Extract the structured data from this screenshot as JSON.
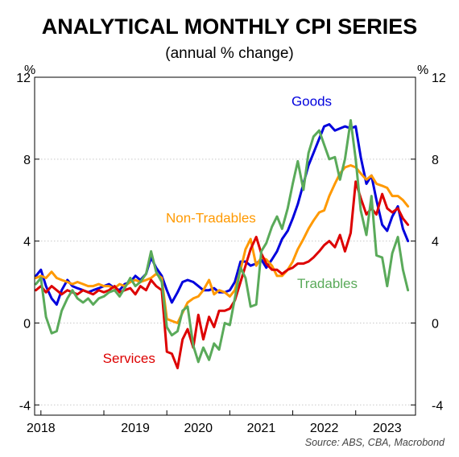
{
  "chart_data": {
    "type": "line",
    "title": "ANALYTICAL MONTHLY CPI SERIES",
    "subtitle": "(annual % change)",
    "y_unit_left": "%",
    "y_unit_right": "%",
    "ylim": [
      -4.5,
      12
    ],
    "y_ticks": [
      12,
      8,
      4,
      0,
      -4
    ],
    "y_tick_labels": [
      "12",
      "8",
      "4",
      "0",
      "-4"
    ],
    "x_range": [
      2017.9,
      2023.95
    ],
    "x_ticks": [
      2018,
      2019,
      2020,
      2021,
      2022,
      2023
    ],
    "x_tick_labels": [
      "2018",
      "2019",
      "2020",
      "2021",
      "2022",
      "2023"
    ],
    "grid": "horizontal",
    "source": "Source: ABS, CBA, Macrobond",
    "series": [
      {
        "name": "Goods",
        "color": "#0000dd",
        "points": [
          [
            2017.92,
            2.3
          ],
          [
            2018.0,
            2.6
          ],
          [
            2018.08,
            1.8
          ],
          [
            2018.17,
            1.2
          ],
          [
            2018.25,
            0.9
          ],
          [
            2018.33,
            1.6
          ],
          [
            2018.42,
            2.1
          ],
          [
            2018.5,
            1.8
          ],
          [
            2018.58,
            1.7
          ],
          [
            2018.67,
            1.6
          ],
          [
            2018.75,
            1.5
          ],
          [
            2018.83,
            1.6
          ],
          [
            2018.92,
            1.7
          ],
          [
            2019.0,
            1.8
          ],
          [
            2019.08,
            1.9
          ],
          [
            2019.17,
            1.7
          ],
          [
            2019.25,
            1.6
          ],
          [
            2019.33,
            1.9
          ],
          [
            2019.42,
            2.0
          ],
          [
            2019.5,
            2.3
          ],
          [
            2019.58,
            2.1
          ],
          [
            2019.67,
            2.4
          ],
          [
            2019.75,
            3.2
          ],
          [
            2019.83,
            2.7
          ],
          [
            2019.92,
            2.3
          ],
          [
            2020.0,
            1.6
          ],
          [
            2020.08,
            1.0
          ],
          [
            2020.17,
            1.5
          ],
          [
            2020.25,
            2.0
          ],
          [
            2020.33,
            2.1
          ],
          [
            2020.42,
            2.0
          ],
          [
            2020.5,
            1.8
          ],
          [
            2020.58,
            1.6
          ],
          [
            2020.67,
            1.6
          ],
          [
            2020.75,
            1.7
          ],
          [
            2020.83,
            1.5
          ],
          [
            2020.92,
            1.5
          ],
          [
            2021.0,
            1.6
          ],
          [
            2021.08,
            2.0
          ],
          [
            2021.17,
            3.0
          ],
          [
            2021.25,
            3.0
          ],
          [
            2021.33,
            2.8
          ],
          [
            2021.42,
            2.9
          ],
          [
            2021.5,
            3.1
          ],
          [
            2021.58,
            2.7
          ],
          [
            2021.67,
            3.1
          ],
          [
            2021.75,
            3.5
          ],
          [
            2021.83,
            4.1
          ],
          [
            2021.92,
            4.5
          ],
          [
            2022.0,
            5.1
          ],
          [
            2022.08,
            5.8
          ],
          [
            2022.17,
            6.8
          ],
          [
            2022.25,
            7.7
          ],
          [
            2022.33,
            8.3
          ],
          [
            2022.42,
            9.0
          ],
          [
            2022.5,
            9.6
          ],
          [
            2022.58,
            9.7
          ],
          [
            2022.67,
            9.4
          ],
          [
            2022.75,
            9.5
          ],
          [
            2022.83,
            9.6
          ],
          [
            2022.92,
            9.5
          ],
          [
            2023.0,
            9.6
          ],
          [
            2023.08,
            8.1
          ],
          [
            2023.17,
            6.8
          ],
          [
            2023.25,
            7.2
          ],
          [
            2023.33,
            6.0
          ],
          [
            2023.42,
            4.8
          ],
          [
            2023.5,
            4.5
          ],
          [
            2023.58,
            5.2
          ],
          [
            2023.67,
            5.7
          ],
          [
            2023.75,
            4.6
          ],
          [
            2023.83,
            4.0
          ]
        ]
      },
      {
        "name": "Non-Tradables",
        "color": "#ff9900",
        "points": [
          [
            2017.92,
            2.2
          ],
          [
            2018.0,
            2.3
          ],
          [
            2018.08,
            2.2
          ],
          [
            2018.17,
            2.5
          ],
          [
            2018.25,
            2.2
          ],
          [
            2018.33,
            2.1
          ],
          [
            2018.42,
            2.0
          ],
          [
            2018.5,
            1.9
          ],
          [
            2018.58,
            2.0
          ],
          [
            2018.67,
            1.9
          ],
          [
            2018.75,
            1.8
          ],
          [
            2018.83,
            1.8
          ],
          [
            2018.92,
            1.9
          ],
          [
            2019.0,
            1.8
          ],
          [
            2019.08,
            1.8
          ],
          [
            2019.17,
            1.7
          ],
          [
            2019.25,
            1.9
          ],
          [
            2019.33,
            1.8
          ],
          [
            2019.42,
            2.0
          ],
          [
            2019.5,
            2.1
          ],
          [
            2019.58,
            2.0
          ],
          [
            2019.67,
            2.1
          ],
          [
            2019.75,
            2.2
          ],
          [
            2019.83,
            2.4
          ],
          [
            2019.92,
            2.2
          ],
          [
            2020.0,
            0.2
          ],
          [
            2020.08,
            0.1
          ],
          [
            2020.17,
            0.0
          ],
          [
            2020.25,
            0.5
          ],
          [
            2020.33,
            1.0
          ],
          [
            2020.42,
            1.2
          ],
          [
            2020.5,
            1.3
          ],
          [
            2020.58,
            1.6
          ],
          [
            2020.67,
            2.1
          ],
          [
            2020.75,
            1.4
          ],
          [
            2020.83,
            1.6
          ],
          [
            2020.92,
            1.5
          ],
          [
            2021.0,
            1.3
          ],
          [
            2021.08,
            1.6
          ],
          [
            2021.17,
            2.6
          ],
          [
            2021.25,
            3.6
          ],
          [
            2021.33,
            4.1
          ],
          [
            2021.42,
            2.8
          ],
          [
            2021.5,
            3.2
          ],
          [
            2021.58,
            3.1
          ],
          [
            2021.67,
            2.8
          ],
          [
            2021.75,
            2.3
          ],
          [
            2021.83,
            2.3
          ],
          [
            2021.92,
            2.6
          ],
          [
            2022.0,
            3.0
          ],
          [
            2022.08,
            3.6
          ],
          [
            2022.17,
            4.1
          ],
          [
            2022.25,
            4.6
          ],
          [
            2022.33,
            5.0
          ],
          [
            2022.42,
            5.4
          ],
          [
            2022.5,
            5.5
          ],
          [
            2022.58,
            6.2
          ],
          [
            2022.67,
            6.8
          ],
          [
            2022.75,
            7.3
          ],
          [
            2022.83,
            7.6
          ],
          [
            2022.92,
            7.7
          ],
          [
            2023.0,
            7.6
          ],
          [
            2023.08,
            7.3
          ],
          [
            2023.17,
            7.0
          ],
          [
            2023.25,
            7.2
          ],
          [
            2023.33,
            6.8
          ],
          [
            2023.42,
            6.7
          ],
          [
            2023.5,
            6.6
          ],
          [
            2023.58,
            6.2
          ],
          [
            2023.67,
            6.2
          ],
          [
            2023.75,
            6.0
          ],
          [
            2023.83,
            5.7
          ]
        ]
      },
      {
        "name": "Services",
        "color": "#dd0000",
        "points": [
          [
            2017.92,
            1.6
          ],
          [
            2018.0,
            1.8
          ],
          [
            2018.08,
            1.5
          ],
          [
            2018.17,
            1.8
          ],
          [
            2018.25,
            1.6
          ],
          [
            2018.33,
            1.4
          ],
          [
            2018.42,
            1.6
          ],
          [
            2018.5,
            1.5
          ],
          [
            2018.58,
            1.4
          ],
          [
            2018.67,
            1.6
          ],
          [
            2018.75,
            1.5
          ],
          [
            2018.83,
            1.4
          ],
          [
            2018.92,
            1.6
          ],
          [
            2019.0,
            1.5
          ],
          [
            2019.08,
            1.6
          ],
          [
            2019.17,
            1.8
          ],
          [
            2019.25,
            1.5
          ],
          [
            2019.33,
            1.6
          ],
          [
            2019.42,
            1.7
          ],
          [
            2019.5,
            1.4
          ],
          [
            2019.58,
            1.8
          ],
          [
            2019.67,
            1.6
          ],
          [
            2019.75,
            2.1
          ],
          [
            2019.83,
            1.8
          ],
          [
            2019.92,
            1.6
          ],
          [
            2020.0,
            -1.4
          ],
          [
            2020.08,
            -1.5
          ],
          [
            2020.17,
            -2.2
          ],
          [
            2020.25,
            -0.8
          ],
          [
            2020.33,
            -0.3
          ],
          [
            2020.42,
            -1.2
          ],
          [
            2020.5,
            0.4
          ],
          [
            2020.58,
            -0.8
          ],
          [
            2020.67,
            0.3
          ],
          [
            2020.75,
            -0.2
          ],
          [
            2020.83,
            0.6
          ],
          [
            2020.92,
            0.6
          ],
          [
            2021.0,
            0.7
          ],
          [
            2021.08,
            1.1
          ],
          [
            2021.17,
            2.0
          ],
          [
            2021.25,
            2.8
          ],
          [
            2021.33,
            3.6
          ],
          [
            2021.42,
            4.2
          ],
          [
            2021.5,
            3.4
          ],
          [
            2021.58,
            2.9
          ],
          [
            2021.67,
            2.6
          ],
          [
            2021.75,
            2.6
          ],
          [
            2021.83,
            2.4
          ],
          [
            2021.92,
            2.6
          ],
          [
            2022.0,
            2.7
          ],
          [
            2022.08,
            2.9
          ],
          [
            2022.17,
            2.9
          ],
          [
            2022.25,
            3.0
          ],
          [
            2022.33,
            3.2
          ],
          [
            2022.42,
            3.5
          ],
          [
            2022.5,
            3.8
          ],
          [
            2022.58,
            4.0
          ],
          [
            2022.67,
            3.7
          ],
          [
            2022.75,
            4.3
          ],
          [
            2022.83,
            3.5
          ],
          [
            2022.92,
            4.4
          ],
          [
            2023.0,
            6.9
          ],
          [
            2023.08,
            6.1
          ],
          [
            2023.17,
            5.3
          ],
          [
            2023.25,
            5.6
          ],
          [
            2023.33,
            5.3
          ],
          [
            2023.42,
            6.3
          ],
          [
            2023.5,
            5.6
          ],
          [
            2023.58,
            5.4
          ],
          [
            2023.67,
            5.6
          ],
          [
            2023.75,
            5.1
          ],
          [
            2023.83,
            4.8
          ]
        ]
      },
      {
        "name": "Tradables",
        "color": "#5aaa5a",
        "points": [
          [
            2017.92,
            1.9
          ],
          [
            2018.0,
            2.2
          ],
          [
            2018.08,
            0.3
          ],
          [
            2018.17,
            -0.5
          ],
          [
            2018.25,
            -0.4
          ],
          [
            2018.33,
            0.6
          ],
          [
            2018.42,
            1.2
          ],
          [
            2018.5,
            1.6
          ],
          [
            2018.58,
            1.2
          ],
          [
            2018.67,
            1.0
          ],
          [
            2018.75,
            1.2
          ],
          [
            2018.83,
            0.9
          ],
          [
            2018.92,
            1.2
          ],
          [
            2019.0,
            1.3
          ],
          [
            2019.08,
            1.5
          ],
          [
            2019.17,
            1.6
          ],
          [
            2019.25,
            1.3
          ],
          [
            2019.33,
            1.7
          ],
          [
            2019.42,
            2.2
          ],
          [
            2019.5,
            1.8
          ],
          [
            2019.58,
            2.0
          ],
          [
            2019.67,
            2.4
          ],
          [
            2019.75,
            3.5
          ],
          [
            2019.83,
            2.5
          ],
          [
            2019.92,
            2.0
          ],
          [
            2020.0,
            -0.2
          ],
          [
            2020.08,
            -0.6
          ],
          [
            2020.17,
            -0.4
          ],
          [
            2020.25,
            0.6
          ],
          [
            2020.33,
            0.8
          ],
          [
            2020.42,
            -1.1
          ],
          [
            2020.5,
            -1.9
          ],
          [
            2020.58,
            -1.2
          ],
          [
            2020.67,
            -1.8
          ],
          [
            2020.75,
            -1.0
          ],
          [
            2020.83,
            -1.3
          ],
          [
            2020.92,
            0.0
          ],
          [
            2021.0,
            -0.1
          ],
          [
            2021.08,
            1.2
          ],
          [
            2021.17,
            2.7
          ],
          [
            2021.25,
            2.2
          ],
          [
            2021.33,
            0.8
          ],
          [
            2021.42,
            0.9
          ],
          [
            2021.5,
            3.5
          ],
          [
            2021.58,
            3.9
          ],
          [
            2021.67,
            4.7
          ],
          [
            2021.75,
            5.2
          ],
          [
            2021.83,
            4.6
          ],
          [
            2021.92,
            5.6
          ],
          [
            2022.0,
            6.8
          ],
          [
            2022.08,
            7.9
          ],
          [
            2022.17,
            6.5
          ],
          [
            2022.25,
            8.3
          ],
          [
            2022.33,
            9.1
          ],
          [
            2022.42,
            9.4
          ],
          [
            2022.5,
            8.7
          ],
          [
            2022.58,
            8.0
          ],
          [
            2022.67,
            8.1
          ],
          [
            2022.75,
            7.0
          ],
          [
            2022.83,
            8.0
          ],
          [
            2022.92,
            9.9
          ],
          [
            2023.0,
            8.0
          ],
          [
            2023.08,
            5.5
          ],
          [
            2023.17,
            4.3
          ],
          [
            2023.25,
            6.2
          ],
          [
            2023.33,
            3.3
          ],
          [
            2023.42,
            3.2
          ],
          [
            2023.5,
            1.8
          ],
          [
            2023.58,
            3.4
          ],
          [
            2023.67,
            4.2
          ],
          [
            2023.75,
            2.6
          ],
          [
            2023.83,
            1.6
          ]
        ]
      }
    ],
    "annotations": [
      {
        "text": "Goods",
        "series": "Goods",
        "x": 2022.3,
        "y": 10.6
      },
      {
        "text": "Non-Tradables",
        "series": "Non-Tradables",
        "x": 2020.7,
        "y": 4.9
      },
      {
        "text": "Tradables",
        "series": "Tradables",
        "x": 2022.55,
        "y": 1.7
      },
      {
        "text": "Services",
        "series": "Services",
        "x": 2019.4,
        "y": -1.95
      }
    ]
  }
}
